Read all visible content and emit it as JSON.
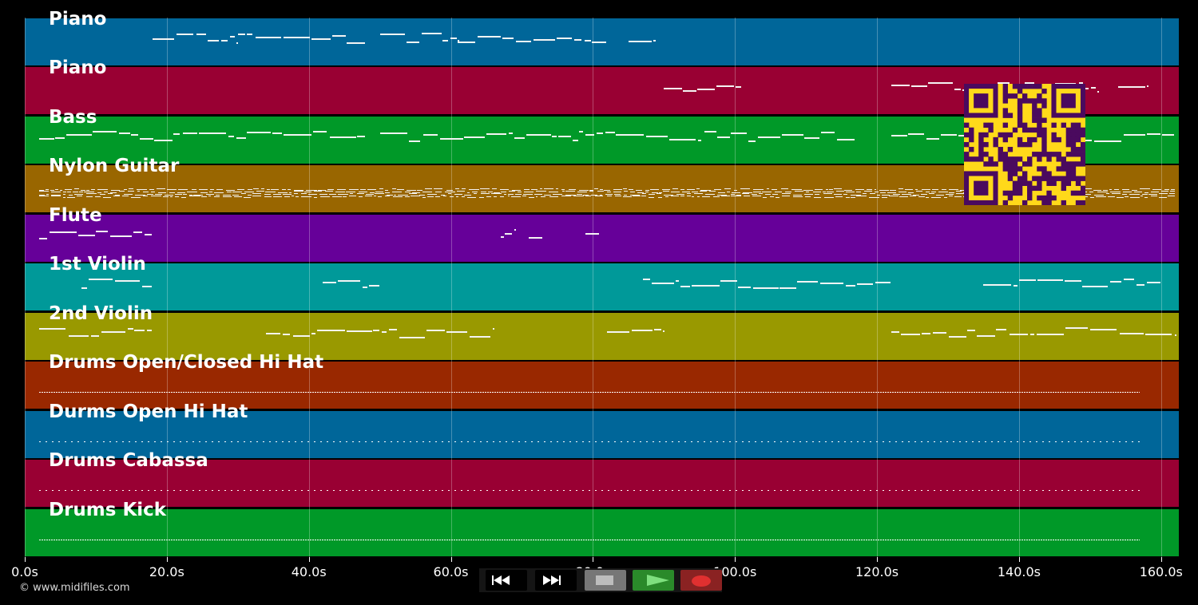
{
  "app": {
    "copyright": "© www.midifiles.com"
  },
  "timeline": {
    "unit": "s",
    "tick_labels": [
      "0.0s",
      "20.0s",
      "40.0s",
      "60.0s",
      "80.0s",
      "100.0s",
      "120.0s",
      "140.0s",
      "160.0s"
    ],
    "tick_values": [
      0,
      20,
      40,
      60,
      80,
      100,
      120,
      140,
      160
    ],
    "duration": 162.5
  },
  "tracks": [
    {
      "name": "Piano",
      "color": "#006699",
      "kind": "melodic",
      "segments": [
        [
          18,
          30
        ],
        [
          30,
          48
        ],
        [
          50,
          61
        ],
        [
          61,
          82
        ],
        [
          85,
          89
        ]
      ]
    },
    {
      "name": "Piano",
      "color": "#990033",
      "kind": "melodic",
      "segments": [
        [
          90,
          101
        ],
        [
          122,
          136
        ],
        [
          137,
          151
        ],
        [
          154,
          158
        ]
      ]
    },
    {
      "name": "Bass",
      "color": "#009928",
      "kind": "melodic",
      "segments": [
        [
          2,
          15
        ],
        [
          15,
          48
        ],
        [
          50,
          78
        ],
        [
          78,
          117
        ],
        [
          122,
          162
        ]
      ]
    },
    {
      "name": "Nylon Guitar",
      "color": "#996600",
      "kind": "dense",
      "segments": [
        [
          2,
          162
        ]
      ]
    },
    {
      "name": "Flute",
      "color": "#660099",
      "kind": "melodic",
      "segments": [
        [
          2,
          18
        ],
        [
          67,
          69
        ],
        [
          71,
          73
        ],
        [
          79,
          81
        ]
      ]
    },
    {
      "name": "1st Violin",
      "color": "#009999",
      "kind": "melodic",
      "segments": [
        [
          8,
          18
        ],
        [
          42,
          50
        ],
        [
          87,
          122
        ],
        [
          135,
          160
        ]
      ]
    },
    {
      "name": "2nd Violin",
      "color": "#999900",
      "kind": "melodic",
      "segments": [
        [
          2,
          18
        ],
        [
          34,
          66
        ],
        [
          82,
          90
        ],
        [
          122,
          162
        ]
      ]
    },
    {
      "name": "Drums Open/Closed Hi Hat",
      "color": "#992800",
      "kind": "drum",
      "segments": [
        [
          2,
          157
        ]
      ]
    },
    {
      "name": "Durms Open Hi Hat",
      "color": "#006699",
      "kind": "drum-sparse",
      "segments": [
        [
          2,
          157
        ]
      ]
    },
    {
      "name": "Drums Cabassa",
      "color": "#990033",
      "kind": "drum-sparse",
      "segments": [
        [
          2,
          157
        ]
      ]
    },
    {
      "name": "Drums Kick",
      "color": "#009928",
      "kind": "drum",
      "segments": [
        [
          2,
          157
        ]
      ]
    }
  ],
  "transport": {
    "buttons": [
      {
        "name": "rewind-button",
        "icon": "rewind-icon"
      },
      {
        "name": "fast-forward-button",
        "icon": "fast-forward-icon"
      },
      {
        "name": "stop-button",
        "icon": "stop-icon"
      },
      {
        "name": "play-button",
        "icon": "play-icon"
      },
      {
        "name": "record-button",
        "icon": "record-icon"
      }
    ],
    "colors": {
      "stop": "#777777",
      "play": "#2a8a2a",
      "record": "#8a2222"
    }
  },
  "overlay": {
    "icon": "qr-code-icon",
    "fg": "#4a0a5e",
    "bg": "#ffd91a"
  }
}
